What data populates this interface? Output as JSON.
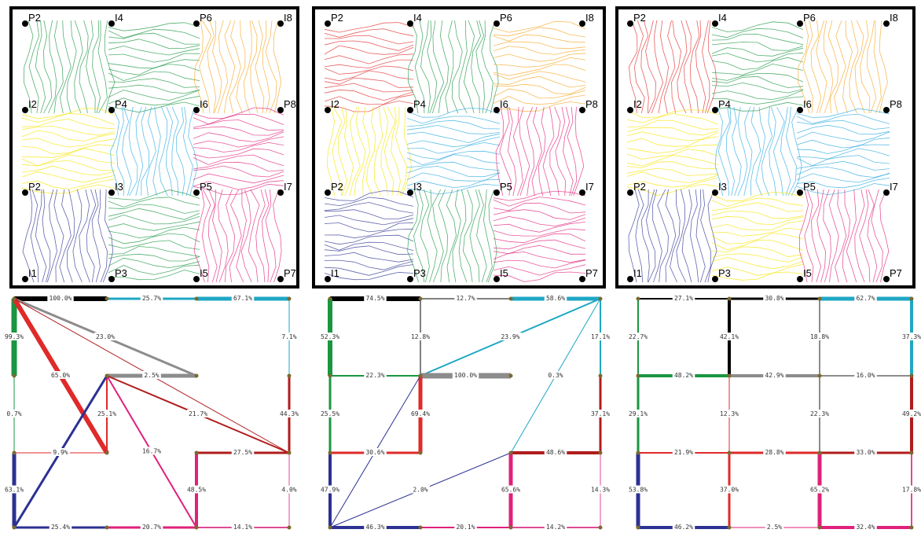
{
  "colors": {
    "black": "#000000",
    "green": "#1a9641",
    "orange": "#f5a623",
    "red": "#e02a2a",
    "yellow": "#f5e400",
    "blue": "#29a9e0",
    "magenta": "#e0207a",
    "navy": "#2c3192",
    "gray": "#8c8c8c",
    "darkred": "#b01c1c",
    "teal": "#1fa7c4",
    "pink": "#e04a96"
  },
  "panels": [
    {
      "id": "left",
      "nodes": [
        {
          "name": "P2",
          "r": 0,
          "c": 0
        },
        {
          "name": "I4",
          "r": 0,
          "c": 1
        },
        {
          "name": "P6",
          "r": 0,
          "c": 2
        },
        {
          "name": "I8",
          "r": 0,
          "c": 3
        },
        {
          "name": "I2",
          "r": 1,
          "c": 0
        },
        {
          "name": "P4",
          "r": 1,
          "c": 1
        },
        {
          "name": "I6",
          "r": 1,
          "c": 2
        },
        {
          "name": "P8",
          "r": 1,
          "c": 3
        },
        {
          "name": "P2",
          "r": 2,
          "c": 0
        },
        {
          "name": "I3",
          "r": 2,
          "c": 1
        },
        {
          "name": "P5",
          "r": 2,
          "c": 2
        },
        {
          "name": "I7",
          "r": 2,
          "c": 3
        },
        {
          "name": "I1",
          "r": 3,
          "c": 0
        },
        {
          "name": "P3",
          "r": 3,
          "c": 1
        },
        {
          "name": "I5",
          "r": 3,
          "c": 2
        },
        {
          "name": "P7",
          "r": 3,
          "c": 3
        }
      ],
      "edges": [
        {
          "label": "100.0%",
          "from": [
            0,
            0
          ],
          "to": [
            0,
            1
          ],
          "color": "black",
          "w": 6
        },
        {
          "label": "25.7%",
          "from": [
            0,
            1
          ],
          "to": [
            0,
            2
          ],
          "color": "teal",
          "w": 3
        },
        {
          "label": "67.1%",
          "from": [
            0,
            2
          ],
          "to": [
            0,
            3
          ],
          "color": "teal",
          "w": 5
        },
        {
          "label": "99.3%",
          "from": [
            0,
            0
          ],
          "to": [
            1,
            0
          ],
          "color": "green",
          "w": 7
        },
        {
          "label": "23.0%",
          "from": [
            0,
            0
          ],
          "to": [
            1,
            2
          ],
          "color": "gray",
          "w": 3
        },
        {
          "label": "65.0%",
          "from": [
            0,
            0
          ],
          "to": [
            2,
            1
          ],
          "color": "red",
          "w": 6
        },
        {
          "label": "",
          "from": [
            0,
            0
          ],
          "to": [
            2,
            3
          ],
          "color": "darkred",
          "w": 1
        },
        {
          "label": "7.1%",
          "from": [
            0,
            3
          ],
          "to": [
            1,
            3
          ],
          "color": "teal",
          "w": 1
        },
        {
          "label": "2.5%",
          "from": [
            1,
            1
          ],
          "to": [
            1,
            2
          ],
          "color": "gray",
          "w": 5
        },
        {
          "label": "25.1%",
          "from": [
            1,
            1
          ],
          "to": [
            2,
            1
          ],
          "color": "red",
          "w": 2
        },
        {
          "label": "21.7%",
          "from": [
            1,
            1
          ],
          "to": [
            2,
            3
          ],
          "color": "darkred",
          "w": 2
        },
        {
          "label": "16.7%",
          "from": [
            1,
            1
          ],
          "to": [
            3,
            2
          ],
          "color": "magenta",
          "w": 2
        },
        {
          "label": "",
          "from": [
            1,
            1
          ],
          "to": [
            3,
            0
          ],
          "color": "navy",
          "w": 3
        },
        {
          "label": "0.7%",
          "from": [
            1,
            0
          ],
          "to": [
            2,
            0
          ],
          "color": "green",
          "w": 1
        },
        {
          "label": "44.3%",
          "from": [
            1,
            3
          ],
          "to": [
            2,
            3
          ],
          "color": "darkred",
          "w": 3
        },
        {
          "label": "9.9%",
          "from": [
            2,
            0
          ],
          "to": [
            2,
            1
          ],
          "color": "red",
          "w": 1
        },
        {
          "label": "27.5%",
          "from": [
            2,
            2
          ],
          "to": [
            2,
            3
          ],
          "color": "darkred",
          "w": 3
        },
        {
          "label": "48.5%",
          "from": [
            2,
            2
          ],
          "to": [
            3,
            2
          ],
          "color": "magenta",
          "w": 4
        },
        {
          "label": "63.1%",
          "from": [
            2,
            0
          ],
          "to": [
            3,
            0
          ],
          "color": "navy",
          "w": 5
        },
        {
          "label": "4.0%",
          "from": [
            2,
            3
          ],
          "to": [
            3,
            3
          ],
          "color": "pink",
          "w": 1
        },
        {
          "label": "25.4%",
          "from": [
            3,
            0
          ],
          "to": [
            3,
            1
          ],
          "color": "navy",
          "w": 3
        },
        {
          "label": "20.7%",
          "from": [
            3,
            1
          ],
          "to": [
            3,
            2
          ],
          "color": "magenta",
          "w": 3
        },
        {
          "label": "14.1%",
          "from": [
            3,
            2
          ],
          "to": [
            3,
            3
          ],
          "color": "pink",
          "w": 2
        }
      ]
    },
    {
      "id": "middle",
      "nodes": [
        {
          "name": "P2",
          "r": 0,
          "c": 0
        },
        {
          "name": "I4",
          "r": 0,
          "c": 1
        },
        {
          "name": "P6",
          "r": 0,
          "c": 2
        },
        {
          "name": "I8",
          "r": 0,
          "c": 3
        },
        {
          "name": "I2",
          "r": 1,
          "c": 0
        },
        {
          "name": "P4",
          "r": 1,
          "c": 1
        },
        {
          "name": "I6",
          "r": 1,
          "c": 2
        },
        {
          "name": "P8",
          "r": 1,
          "c": 3
        },
        {
          "name": "P2",
          "r": 2,
          "c": 0
        },
        {
          "name": "I3",
          "r": 2,
          "c": 1
        },
        {
          "name": "P5",
          "r": 2,
          "c": 2
        },
        {
          "name": "I7",
          "r": 2,
          "c": 3
        },
        {
          "name": "I1",
          "r": 3,
          "c": 0
        },
        {
          "name": "P3",
          "r": 3,
          "c": 1
        },
        {
          "name": "I5",
          "r": 3,
          "c": 2
        },
        {
          "name": "P7",
          "r": 3,
          "c": 3
        }
      ],
      "edges": [
        {
          "label": "74.5%",
          "from": [
            0,
            0
          ],
          "to": [
            0,
            1
          ],
          "color": "black",
          "w": 6
        },
        {
          "label": "12.7%",
          "from": [
            0,
            1
          ],
          "to": [
            0,
            2
          ],
          "color": "black",
          "w": 1
        },
        {
          "label": "58.6%",
          "from": [
            0,
            2
          ],
          "to": [
            0,
            3
          ],
          "color": "teal",
          "w": 5
        },
        {
          "label": "52.3%",
          "from": [
            0,
            0
          ],
          "to": [
            1,
            0
          ],
          "color": "green",
          "w": 6
        },
        {
          "label": "12.8%",
          "from": [
            0,
            1
          ],
          "to": [
            1,
            1
          ],
          "color": "black",
          "w": 1
        },
        {
          "label": "23.9%",
          "from": [
            0,
            3
          ],
          "to": [
            1,
            1
          ],
          "color": "teal",
          "w": 2
        },
        {
          "label": "0.3%",
          "from": [
            0,
            3
          ],
          "to": [
            2,
            2
          ],
          "color": "teal",
          "w": 1
        },
        {
          "label": "17.1%",
          "from": [
            0,
            3
          ],
          "to": [
            1,
            3
          ],
          "color": "teal",
          "w": 2
        },
        {
          "label": "22.3%",
          "from": [
            1,
            0
          ],
          "to": [
            1,
            1
          ],
          "color": "green",
          "w": 2
        },
        {
          "label": "100.0%",
          "from": [
            1,
            1
          ],
          "to": [
            1,
            2
          ],
          "color": "gray",
          "w": 7
        },
        {
          "label": "69.4%",
          "from": [
            1,
            1
          ],
          "to": [
            2,
            1
          ],
          "color": "red",
          "w": 5
        },
        {
          "label": "",
          "from": [
            1,
            1
          ],
          "to": [
            3,
            0
          ],
          "color": "navy",
          "w": 1
        },
        {
          "label": "25.5%",
          "from": [
            1,
            0
          ],
          "to": [
            2,
            0
          ],
          "color": "green",
          "w": 3
        },
        {
          "label": "37.1%",
          "from": [
            1,
            3
          ],
          "to": [
            2,
            3
          ],
          "color": "darkred",
          "w": 3
        },
        {
          "label": "30.6%",
          "from": [
            2,
            0
          ],
          "to": [
            2,
            1
          ],
          "color": "red",
          "w": 3
        },
        {
          "label": "48.6%",
          "from": [
            2,
            2
          ],
          "to": [
            2,
            3
          ],
          "color": "darkred",
          "w": 4
        },
        {
          "label": "2.0%",
          "from": [
            3,
            0
          ],
          "to": [
            2,
            2
          ],
          "color": "navy",
          "w": 1
        },
        {
          "label": "47.9%",
          "from": [
            2,
            0
          ],
          "to": [
            3,
            0
          ],
          "color": "navy",
          "w": 4
        },
        {
          "label": "65.6%",
          "from": [
            2,
            2
          ],
          "to": [
            3,
            2
          ],
          "color": "magenta",
          "w": 5
        },
        {
          "label": "14.3%",
          "from": [
            2,
            3
          ],
          "to": [
            3,
            3
          ],
          "color": "pink",
          "w": 1
        },
        {
          "label": "46.3%",
          "from": [
            3,
            0
          ],
          "to": [
            3,
            1
          ],
          "color": "navy",
          "w": 4
        },
        {
          "label": "20.1%",
          "from": [
            3,
            1
          ],
          "to": [
            3,
            2
          ],
          "color": "magenta",
          "w": 2
        },
        {
          "label": "14.2%",
          "from": [
            3,
            2
          ],
          "to": [
            3,
            3
          ],
          "color": "pink",
          "w": 2
        }
      ]
    },
    {
      "id": "right",
      "nodes": [
        {
          "name": "P2",
          "r": 0,
          "c": 0
        },
        {
          "name": "I4",
          "r": 0,
          "c": 1
        },
        {
          "name": "P6",
          "r": 0,
          "c": 2
        },
        {
          "name": "I8",
          "r": 0,
          "c": 3
        },
        {
          "name": "I2",
          "r": 1,
          "c": 0
        },
        {
          "name": "P4",
          "r": 1,
          "c": 1
        },
        {
          "name": "I6",
          "r": 1,
          "c": 2
        },
        {
          "name": "P8",
          "r": 1,
          "c": 3
        },
        {
          "name": "P2",
          "r": 2,
          "c": 0
        },
        {
          "name": "I3",
          "r": 2,
          "c": 1
        },
        {
          "name": "P5",
          "r": 2,
          "c": 2
        },
        {
          "name": "I7",
          "r": 2,
          "c": 3
        },
        {
          "name": "I1",
          "r": 3,
          "c": 0
        },
        {
          "name": "P3",
          "r": 3,
          "c": 1
        },
        {
          "name": "I5",
          "r": 3,
          "c": 2
        },
        {
          "name": "P7",
          "r": 3,
          "c": 3
        }
      ],
      "edges": [
        {
          "label": "27.1%",
          "from": [
            0,
            0
          ],
          "to": [
            0,
            1
          ],
          "color": "black",
          "w": 2
        },
        {
          "label": "30.8%",
          "from": [
            0,
            1
          ],
          "to": [
            0,
            2
          ],
          "color": "black",
          "w": 3
        },
        {
          "label": "62.7%",
          "from": [
            0,
            2
          ],
          "to": [
            0,
            3
          ],
          "color": "teal",
          "w": 5
        },
        {
          "label": "22.7%",
          "from": [
            0,
            0
          ],
          "to": [
            1,
            0
          ],
          "color": "green",
          "w": 2
        },
        {
          "label": "42.1%",
          "from": [
            0,
            1
          ],
          "to": [
            1,
            1
          ],
          "color": "black",
          "w": 4
        },
        {
          "label": "18.8%",
          "from": [
            0,
            2
          ],
          "to": [
            1,
            2
          ],
          "color": "gray",
          "w": 2
        },
        {
          "label": "37.3%",
          "from": [
            0,
            3
          ],
          "to": [
            1,
            3
          ],
          "color": "teal",
          "w": 4
        },
        {
          "label": "48.2%",
          "from": [
            1,
            0
          ],
          "to": [
            1,
            1
          ],
          "color": "green",
          "w": 4
        },
        {
          "label": "42.9%",
          "from": [
            1,
            1
          ],
          "to": [
            1,
            2
          ],
          "color": "gray",
          "w": 4
        },
        {
          "label": "16.0%",
          "from": [
            1,
            2
          ],
          "to": [
            1,
            3
          ],
          "color": "gray",
          "w": 2
        },
        {
          "label": "29.1%",
          "from": [
            1,
            0
          ],
          "to": [
            2,
            0
          ],
          "color": "green",
          "w": 3
        },
        {
          "label": "12.3%",
          "from": [
            1,
            1
          ],
          "to": [
            2,
            1
          ],
          "color": "red",
          "w": 1
        },
        {
          "label": "22.3%",
          "from": [
            1,
            2
          ],
          "to": [
            2,
            2
          ],
          "color": "gray",
          "w": 2
        },
        {
          "label": "49.2%",
          "from": [
            1,
            3
          ],
          "to": [
            2,
            3
          ],
          "color": "darkred",
          "w": 4
        },
        {
          "label": "21.9%",
          "from": [
            2,
            0
          ],
          "to": [
            2,
            1
          ],
          "color": "red",
          "w": 2
        },
        {
          "label": "28.8%",
          "from": [
            2,
            1
          ],
          "to": [
            2,
            2
          ],
          "color": "red",
          "w": 3
        },
        {
          "label": "33.0%",
          "from": [
            2,
            2
          ],
          "to": [
            2,
            3
          ],
          "color": "darkred",
          "w": 3
        },
        {
          "label": "53.8%",
          "from": [
            2,
            0
          ],
          "to": [
            3,
            0
          ],
          "color": "navy",
          "w": 5
        },
        {
          "label": "37.0%",
          "from": [
            2,
            1
          ],
          "to": [
            3,
            1
          ],
          "color": "red",
          "w": 3
        },
        {
          "label": "65.2%",
          "from": [
            2,
            2
          ],
          "to": [
            3,
            2
          ],
          "color": "magenta",
          "w": 5
        },
        {
          "label": "17.8%",
          "from": [
            2,
            3
          ],
          "to": [
            3,
            3
          ],
          "color": "pink",
          "w": 2
        },
        {
          "label": "46.2%",
          "from": [
            3,
            0
          ],
          "to": [
            3,
            1
          ],
          "color": "navy",
          "w": 4
        },
        {
          "label": "2.5%",
          "from": [
            3,
            1
          ],
          "to": [
            3,
            2
          ],
          "color": "magenta",
          "w": 1
        },
        {
          "label": "32.4%",
          "from": [
            3,
            2
          ],
          "to": [
            3,
            3
          ],
          "color": "magenta",
          "w": 4
        }
      ]
    }
  ]
}
